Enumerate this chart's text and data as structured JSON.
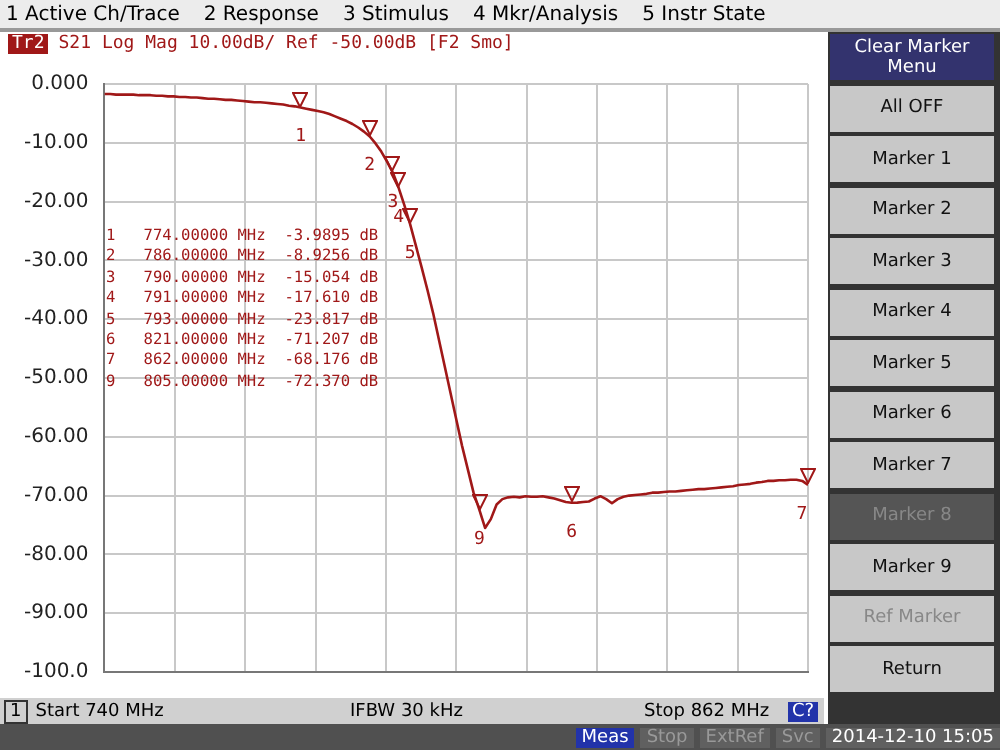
{
  "chart_data": {
    "type": "line",
    "title": "S21 Log Mag 10.00dB/ Ref -50.00dB [F2 Smo]",
    "categories": [
      null,
      null,
      null,
      null,
      null,
      null,
      null,
      null,
      null,
      null,
      null,
      null,
      null,
      null,
      null,
      null,
      null,
      null,
      null,
      null,
      null,
      null,
      null,
      null,
      null,
      null,
      null,
      null,
      null,
      null,
      null,
      null,
      null,
      null,
      null,
      null,
      null,
      null,
      null,
      null,
      null,
      null,
      null,
      null,
      null,
      null,
      null,
      null,
      null,
      null,
      null,
      null,
      null,
      null,
      null,
      null,
      null,
      null,
      null,
      null,
      null,
      null,
      null,
      null,
      null,
      null,
      null,
      null,
      null,
      null,
      null,
      null,
      null,
      null,
      null,
      null,
      null,
      null,
      null,
      null,
      null,
      null,
      null,
      null,
      null,
      null,
      null,
      null,
      null,
      null,
      null,
      null,
      null,
      null,
      null,
      null,
      null,
      null,
      null,
      null,
      null,
      null,
      null,
      null,
      null,
      null,
      null,
      null,
      null,
      null,
      null,
      null,
      null,
      null,
      null,
      null,
      null,
      null,
      null,
      null,
      null,
      null,
      null
    ],
    "ylim": [
      -100,
      0
    ],
    "yticks": [
      {
        "value": 0,
        "label": "0.000"
      },
      {
        "value": -10,
        "label": "-10.00"
      },
      {
        "value": -20,
        "label": "-20.00"
      },
      {
        "value": -30,
        "label": "-30.00"
      },
      {
        "value": -40,
        "label": "-40.00"
      },
      {
        "value": -50,
        "label": "-50.00"
      },
      {
        "value": -60,
        "label": "-60.00"
      },
      {
        "value": -70,
        "label": "-70.00"
      },
      {
        "value": -80,
        "label": "-80.00"
      },
      {
        "value": -90,
        "label": "-90.00"
      },
      {
        "value": -100,
        "label": "-100.0"
      }
    ],
    "tick_labels": "y",
    "grid": true,
    "legend": false,
    "marker": "none",
    "line_style": "solid",
    "series": [
      {
        "color": "#a01818",
        "values": [
          -1.7,
          -1.7,
          -1.8,
          -1.8,
          -1.8,
          -1.8,
          -1.9,
          -1.9,
          -1.9,
          -2.0,
          -2.0,
          -2.1,
          -2.1,
          -2.2,
          -2.2,
          -2.3,
          -2.3,
          -2.4,
          -2.5,
          -2.5,
          -2.6,
          -2.7,
          -2.7,
          -2.8,
          -2.9,
          -3.0,
          -3.1,
          -3.1,
          -3.2,
          -3.3,
          -3.4,
          -3.5,
          -3.7,
          -3.8,
          -3.9895,
          -4.2,
          -4.4,
          -4.6,
          -4.8,
          -5.1,
          -5.5,
          -5.9,
          -6.3,
          -6.8,
          -7.4,
          -8.1,
          -8.9256,
          -10.1,
          -11.5,
          -13.2,
          -15.054,
          -17.61,
          -20.6,
          -23.817,
          -27.5,
          -31.2,
          -35,
          -39,
          -43.5,
          -48,
          -52.5,
          -57,
          -61.5,
          -65.5,
          -69.5,
          -72.37,
          -75.5,
          -74,
          -71.5,
          -70.6,
          -70.3,
          -70.2,
          -70.3,
          -70.1,
          -70.2,
          -70.2,
          -70.1,
          -70.3,
          -70.5,
          -70.8,
          -71.1,
          -71.207,
          -71.2,
          -71.1,
          -71.0,
          -70.5,
          -70.1,
          -70.6,
          -71.3,
          -70.6,
          -70.2,
          -70.0,
          -69.9,
          -69.8,
          -69.7,
          -69.5,
          -69.5,
          -69.4,
          -69.3,
          -69.3,
          -69.2,
          -69.1,
          -69.0,
          -68.9,
          -68.9,
          -68.8,
          -68.7,
          -68.6,
          -68.5,
          -68.4,
          -68.2,
          -68.1,
          -68.0,
          -67.8,
          -67.7,
          -67.5,
          -67.5,
          -67.4,
          -67.4,
          -67.3,
          -67.3,
          -67.5,
          -68.176
        ]
      }
    ],
    "annotations": [
      "Tr2",
      "1 Active Ch/Trace",
      "2 Response",
      "3 Stimulus",
      "4 Mkr/Analysis",
      "5 Instr State",
      "1   774.00000 MHz  -3.9895 dB",
      "2   786.00000 MHz  -8.9256 dB",
      "3   790.00000 MHz  -15.054 dB",
      "4   791.00000 MHz  -17.610 dB",
      "5   793.00000 MHz  -23.817 dB",
      "6   821.00000 MHz  -71.207 dB",
      "7   862.00000 MHz  -68.176 dB",
      "9   805.00000 MHz  -72.370 dB",
      "1",
      "Start 740 MHz",
      "IFBW 30 kHz",
      "Stop 862 MHz",
      "C?",
      "Meas",
      "Stop",
      "ExtRef",
      "Svc",
      "2014-12-10 15:05",
      "Clear Marker Menu",
      "All OFF",
      "Marker 1",
      "Marker 2",
      "Marker 3",
      "Marker 4",
      "Marker 5",
      "Marker 6",
      "Marker 7",
      "Marker 8",
      "Marker 9",
      "Ref Marker",
      "Return",
      {
        "text": "1",
        "y": -3.9895
      },
      {
        "text": "2",
        "y": -8.9256
      },
      {
        "text": "3",
        "y": -15.054
      },
      {
        "text": "4",
        "y": -17.61
      },
      {
        "text": "5",
        "y": -23.817
      },
      {
        "text": "6",
        "y": -71.207
      },
      {
        "text": "7",
        "y": -68.176
      },
      {
        "text": "9",
        "y": -72.37
      }
    ]
  }
}
